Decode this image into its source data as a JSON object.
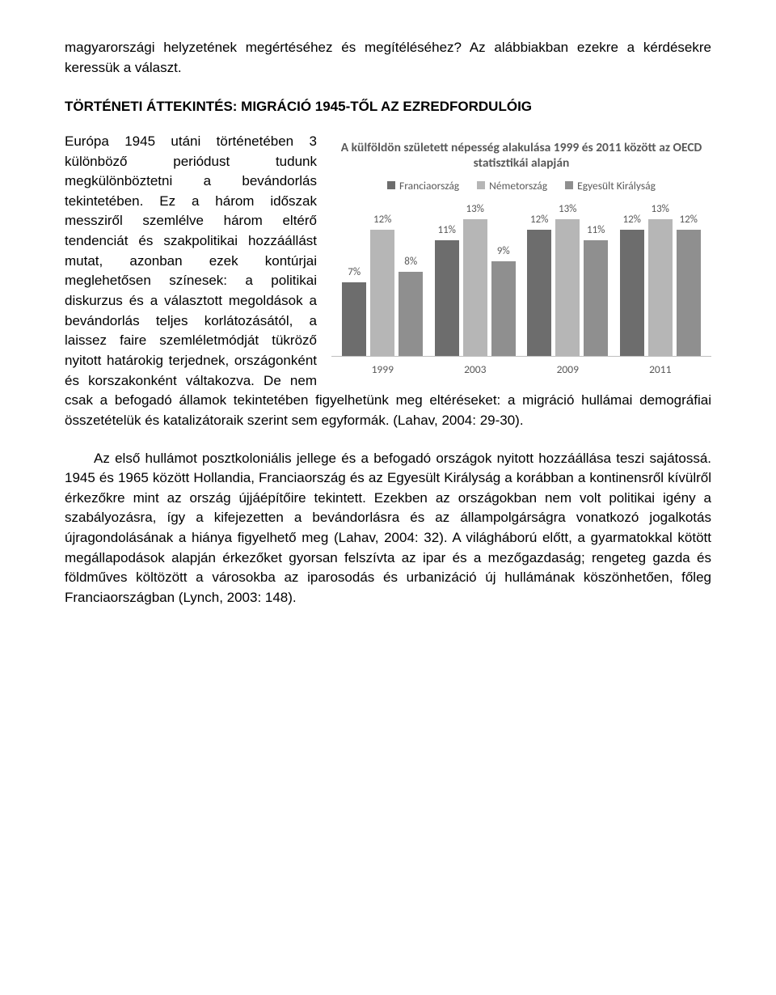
{
  "intro": "magyarországi helyzetének megértéséhez és megítéléséhez? Az alábbiakban ezekre a kérdésekre keressük a választ.",
  "section_title": "TÖRTÉNETI ÁTTEKINTÉS: MIGRÁCIÓ 1945-TŐL AZ EZREDFORDULÓIG",
  "body1": "Európa 1945 utáni történetében 3 különböző periódust tudunk megkülönböztetni a bevándorlás tekintetében. Ez a három időszak messziről szemlélve három eltérő tendenciát és szakpolitikai hozzáállást mutat, azonban ezek kontúrjai meglehetősen színesek: a politikai diskurzus és a választott megoldások a bevándorlás teljes korlátozásától, a laissez faire szemléletmódját tükröző nyitott határokig terjednek, országonként és korszakonként váltakozva. De nem csak a befogadó államok tekintetében figyelhetünk meg eltéréseket: a migráció hullámai demográfiai összetételük és katalizátoraik szerint sem egyformák. (Lahav, 2004: 29-30).",
  "body2": "Az első hullámot posztkoloniális jellege és a befogadó országok nyitott hozzáállása teszi sajátossá. 1945 és 1965 között Hollandia, Franciaország és az Egyesült Királyság a korábban a kontinensről kívülről érkezőkre mint az ország újjáépítőire tekintett. Ezekben az országokban nem volt politikai igény a szabályozásra, így a kifejezetten a bevándorlásra és az állampolgárságra vonatkozó jogalkotás újragondolásának a hiánya figyelhető meg (Lahav, 2004: 32). A világháború előtt, a gyarmatokkal kötött megállapodások alapján érkezőket gyorsan felszívta az ipar és a mezőgazdaság; rengeteg gazda és földműves költözött a városokba az iparosodás és urbanizáció új hullámának köszönhetően, főleg Franciaországban (Lynch, 2003: 148).",
  "chart": {
    "title": "A külföldön született népesség alakulása 1999 és 2011 között az OECD statisztikái alapján",
    "series": [
      {
        "name": "Franciaország",
        "color": "#6d6d6d"
      },
      {
        "name": "Németország",
        "color": "#b6b6b6"
      },
      {
        "name": "Egyesült Királyság",
        "color": "#8f8f8f"
      }
    ],
    "maxValue": 14,
    "unitHeight": 13,
    "years": [
      {
        "label": "1999",
        "values": [
          7,
          12,
          8
        ]
      },
      {
        "label": "2003",
        "values": [
          11,
          13,
          9
        ]
      },
      {
        "label": "2009",
        "values": [
          12,
          13,
          11
        ]
      },
      {
        "label": "2011",
        "values": [
          12,
          13,
          12
        ]
      }
    ]
  }
}
